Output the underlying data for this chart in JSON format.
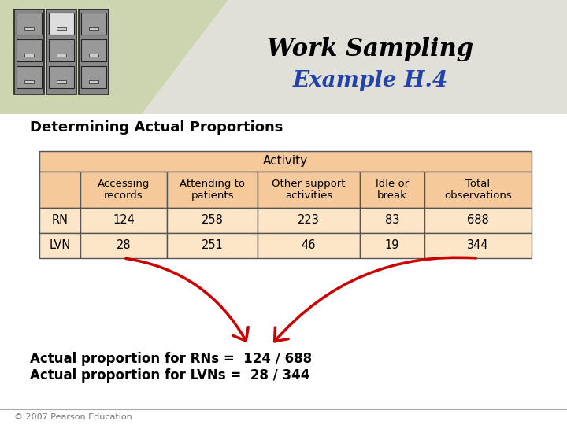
{
  "title_line1": "Work Sampling",
  "title_line2": "Example H.4",
  "subtitle": "Determining Actual Proportions",
  "header_row": [
    "",
    "Accessing\nrecords",
    "Attending to\npatients",
    "Other support\nactivities",
    "Idle or\nbreak",
    "Total\nobservations"
  ],
  "activity_header": "Activity",
  "rows": [
    [
      "RN",
      "124",
      "258",
      "223",
      "83",
      "688"
    ],
    [
      "LVN",
      "28",
      "251",
      "46",
      "19",
      "344"
    ]
  ],
  "note_line1": "Actual proportion for RNs =  124 / 688",
  "note_line2": "Actual proportion for LVNs =  28 / 344",
  "bg_color": "#ffffff",
  "header_bg": "#f5c99a",
  "cell_bg_light": "#fde6c8",
  "table_border": "#555555",
  "title_color1": "#000000",
  "title_color2": "#2244aa",
  "subtitle_color": "#000000",
  "note_color": "#000000",
  "top_bg_color": "#cdd4b0",
  "diag_bg_color": "#e0e0d8",
  "copyright": "© 2007 Pearson Education",
  "arrow_color": "#cc0000",
  "fig_width": 7.2,
  "fig_height": 5.4,
  "dpi": 100
}
